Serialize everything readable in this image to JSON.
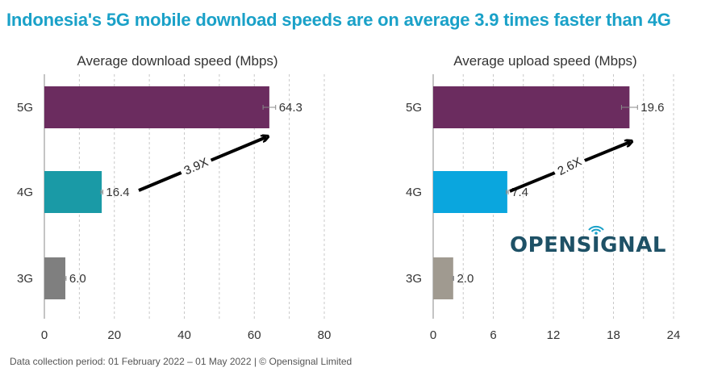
{
  "title": "Indonesia's 5G mobile download speeds are on average 3.9 times faster than 4G",
  "footer": "Data collection period: 01 February 2022 – 01 May 2022  |  © Opensignal Limited",
  "logo": {
    "text_before": "OPENS",
    "text_i": "I",
    "text_after": "GNAL",
    "color": "#1e5166",
    "icon": "wifi-signal-icon"
  },
  "chart_data": [
    {
      "type": "bar",
      "orientation": "horizontal",
      "title": "Average download speed (Mbps)",
      "categories": [
        "5G",
        "4G",
        "3G"
      ],
      "values": [
        64.3,
        16.4,
        6.0
      ],
      "value_labels": [
        "64.3",
        "16.4",
        "6.0"
      ],
      "colors": [
        "#6b2c5f",
        "#1a9aa6",
        "#7f7f7f"
      ],
      "error_bars": [
        1.8,
        0.3,
        0.2
      ],
      "xlim": [
        0,
        80
      ],
      "xticks": [
        0,
        20,
        40,
        60,
        80
      ],
      "gridlines": [
        10,
        20,
        30,
        40,
        50,
        60,
        70,
        80
      ],
      "arrow_label": "3.9X"
    },
    {
      "type": "bar",
      "orientation": "horizontal",
      "title": "Average upload speed (Mbps)",
      "categories": [
        "5G",
        "4G",
        "3G"
      ],
      "values": [
        19.6,
        7.4,
        2.0
      ],
      "value_labels": [
        "19.6",
        "7.4",
        "2.0"
      ],
      "colors": [
        "#6b2c5f",
        "#0aa6de",
        "#a09a90"
      ],
      "error_bars": [
        0.8,
        0.1,
        0.05
      ],
      "xlim": [
        0,
        24
      ],
      "xticks": [
        0,
        6,
        12,
        18,
        24
      ],
      "gridlines": [
        3,
        6,
        9,
        12,
        15,
        18,
        21,
        24
      ],
      "arrow_label": "2.6X"
    }
  ]
}
